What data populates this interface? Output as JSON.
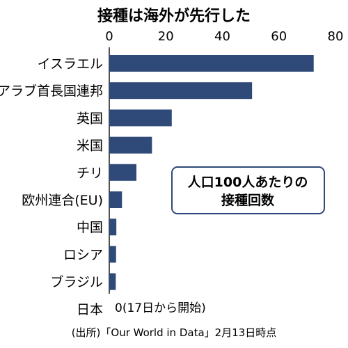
{
  "chart_data": {
    "type": "bar",
    "orientation": "horizontal",
    "title": "接種は海外が先行した",
    "categories": [
      "イスラエル",
      "アラブ首長国連邦",
      "英国",
      "米国",
      "チリ",
      "欧州連合(EU)",
      "中国",
      "ロシア",
      "ブラジル",
      "日本"
    ],
    "values": [
      72.3,
      50.5,
      22.1,
      15.1,
      9.6,
      4.5,
      2.5,
      2.4,
      2.3,
      0
    ],
    "xlim": [
      0,
      80
    ],
    "xticks": [
      "0",
      "20",
      "40",
      "60",
      "80"
    ],
    "grid": false,
    "legend_box": [
      "人口100人あたりの",
      "接種回数"
    ],
    "annotation": "0(17日から開始)",
    "source": "(出所)「Our World in Data」2月13日時点",
    "bar_color": "#2f4a78"
  }
}
